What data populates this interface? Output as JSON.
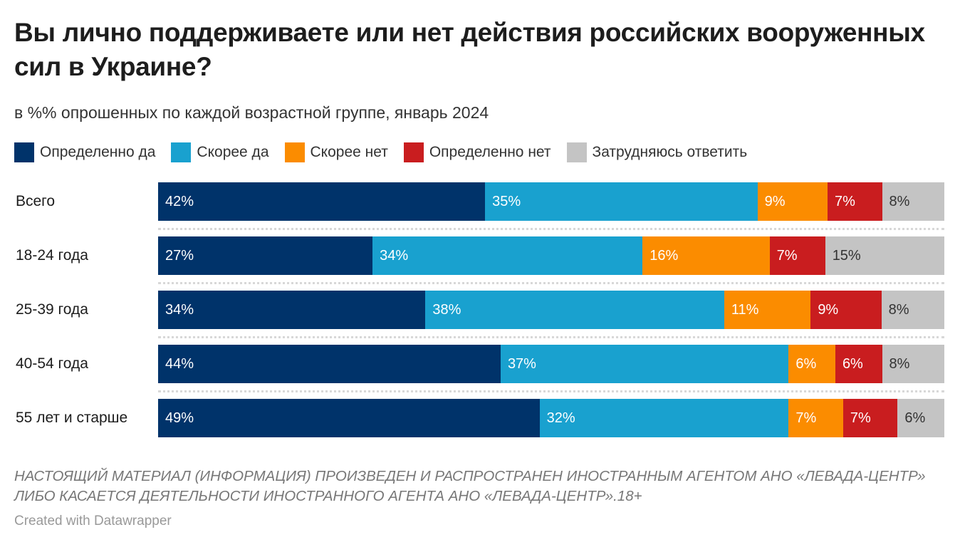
{
  "chart_data": {
    "type": "bar",
    "orientation": "horizontal",
    "stacked": true,
    "title": "Вы лично поддерживаете или нет действия российских вооруженных сил в Украине?",
    "subtitle": "в %% опрошенных по каждой возрастной группе, январь 2024",
    "categories": [
      "Всего",
      "18-24 года",
      "25-39 года",
      "40-54 года",
      "55 лет и старше"
    ],
    "series": [
      {
        "name": "Определенно да",
        "color": "#00336a",
        "values": [
          42,
          27,
          34,
          44,
          49
        ]
      },
      {
        "name": "Скорее да",
        "color": "#19a1cf",
        "values": [
          35,
          34,
          38,
          37,
          32
        ]
      },
      {
        "name": "Скорее нет",
        "color": "#fb8c00",
        "values": [
          9,
          16,
          11,
          6,
          7
        ]
      },
      {
        "name": "Определенно нет",
        "color": "#c91d1f",
        "values": [
          7,
          7,
          9,
          6,
          7
        ]
      },
      {
        "name": "Затрудняюсь ответить",
        "color": "#c4c4c4",
        "values": [
          8,
          15,
          8,
          8,
          6
        ]
      }
    ],
    "value_suffix": "%",
    "legend_position": "top",
    "grid": false
  },
  "notes": "НАСТОЯЩИЙ МАТЕРИАЛ (ИНФОРМАЦИЯ) ПРОИЗВЕДЕН И РАСПРОСТРАНЕН ИНОСТРАННЫМ АГЕНТОМ АНО «ЛЕВАДА-ЦЕНТР» ЛИБО КАСАЕТСЯ ДЕЯТЕЛЬНОСТИ ИНОСТРАННОГО АГЕНТА АНО «ЛЕВАДА-ЦЕНТР».18+",
  "credit": "Created with Datawrapper"
}
